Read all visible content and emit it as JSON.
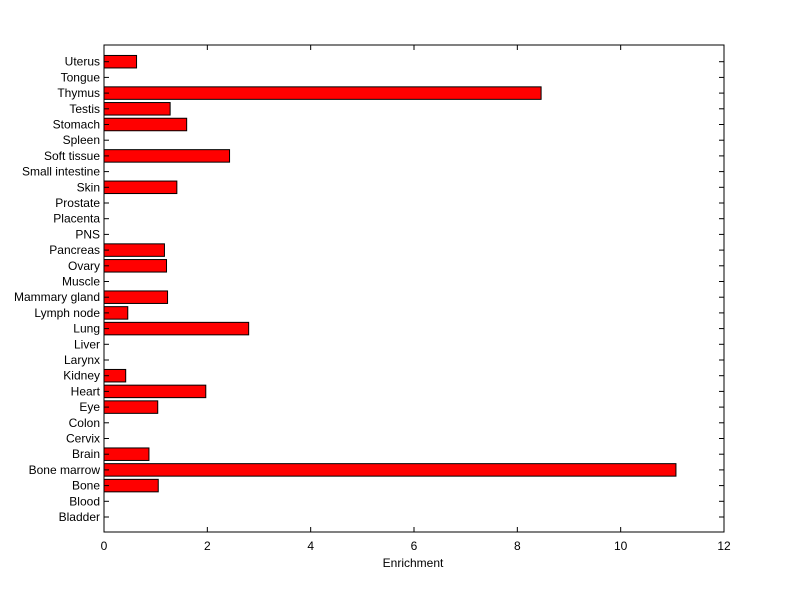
{
  "chart_data": {
    "type": "bar",
    "orientation": "horizontal",
    "title": "",
    "xlabel": "Enrichment",
    "ylabel": "",
    "xlim": [
      0,
      12
    ],
    "xticks": [
      0,
      2,
      4,
      6,
      8,
      10,
      12
    ],
    "xtick_labels": [
      "0",
      "2",
      "4",
      "6",
      "8",
      "10",
      "12"
    ],
    "grid": false,
    "legend": "none",
    "bar_color": "#ff0000",
    "bar_edge_color": "#000000",
    "categories": [
      "Bladder",
      "Blood",
      "Bone",
      "Bone marrow",
      "Brain",
      "Cervix",
      "Colon",
      "Eye",
      "Heart",
      "Kidney",
      "Larynx",
      "Liver",
      "Lung",
      "Lymph node",
      "Mammary gland",
      "Muscle",
      "Ovary",
      "Pancreas",
      "PNS",
      "Placenta",
      "Prostate",
      "Skin",
      "Small intestine",
      "Soft tissue",
      "Spleen",
      "Stomach",
      "Testis",
      "Thymus",
      "Tongue",
      "Uterus"
    ],
    "values": [
      0,
      0,
      1.05,
      11.07,
      0.87,
      0,
      0,
      1.04,
      1.97,
      0.42,
      0,
      0,
      2.8,
      0.46,
      1.23,
      0,
      1.21,
      1.17,
      0,
      0,
      0,
      1.41,
      0,
      2.43,
      0,
      1.6,
      1.28,
      8.46,
      0,
      0.63
    ]
  }
}
